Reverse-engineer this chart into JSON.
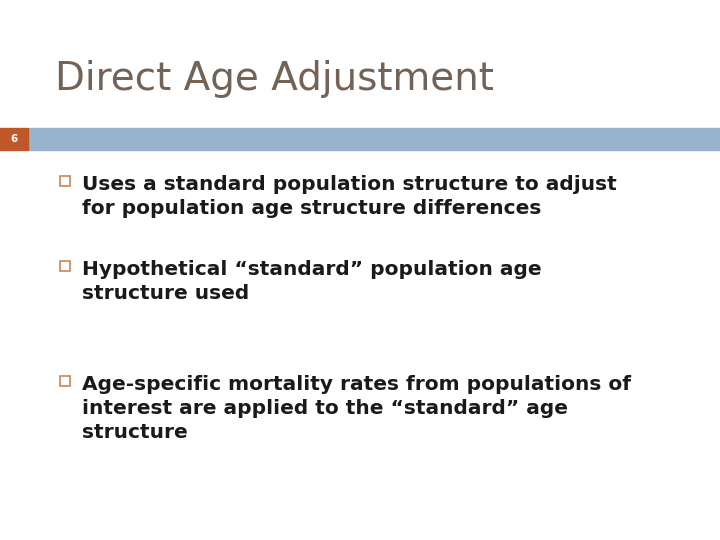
{
  "title": "Direct Age Adjustment",
  "title_color": "#736357",
  "title_fontsize": 28,
  "slide_number": "6",
  "slide_number_color": "#ffffff",
  "slide_number_bg": "#c0572a",
  "banner_color": "#9ab3cc",
  "background_color": "#ffffff",
  "bullet_color": "#1a1a1a",
  "bullet_marker_color": "#c8865a",
  "bullet_fontsize": 14.5,
  "bullets": [
    "Uses a standard population structure to adjust\nfor population age structure differences",
    "Hypothetical “standard” population age\nstructure used",
    "Age-specific mortality rates from populations of\ninterest are applied to the “standard” age\nstructure"
  ]
}
